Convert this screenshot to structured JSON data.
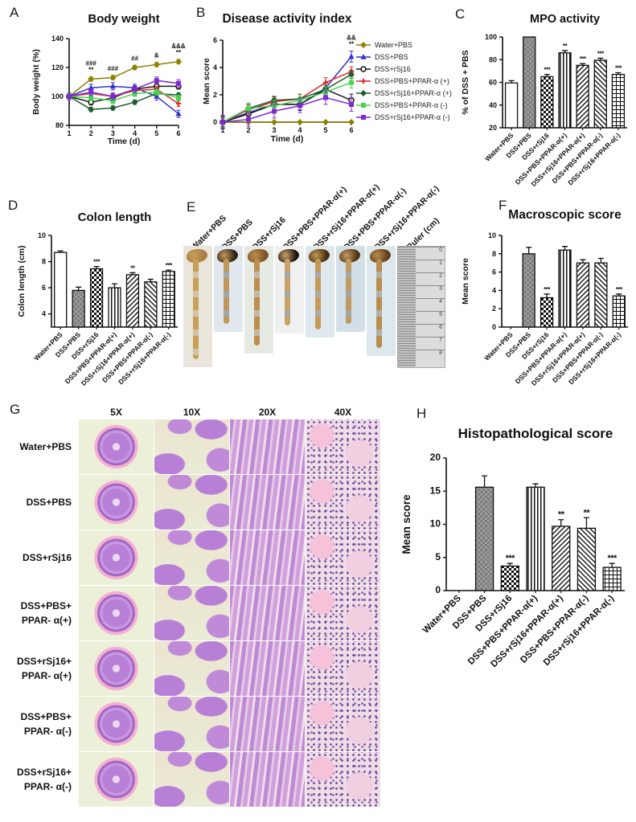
{
  "letters": {
    "A": "A",
    "B": "B",
    "C": "C",
    "D": "D",
    "E": "E",
    "F": "F",
    "G": "G",
    "H": "H"
  },
  "groups": [
    "Water+PBS",
    "DSS+PBS",
    "DSS+rSj16",
    "DSS+PBS+PPAR-α(+)",
    "DSS+rSj16+PPAR-α(+)",
    "DSS+PBS+PPAR-α(-)",
    "DSS+rSj16+PPAR-α(-)"
  ],
  "legend": {
    "entries": [
      {
        "label": "Water+PBS",
        "color": "#8f8000",
        "marker": "diamond"
      },
      {
        "label": "DSS+PBS",
        "color": "#3333cc",
        "marker": "triangle"
      },
      {
        "label": "DSS+rSj16",
        "color": "#1a1a1a",
        "marker": "ocircle"
      },
      {
        "label": "DSS+PBS+PPAR-α (+)",
        "color": "#e02b2b",
        "marker": "plus"
      },
      {
        "label": "DSS+rSj16+PPAR-α (+)",
        "color": "#1d5c2f",
        "marker": "diamond"
      },
      {
        "label": "DSS+PBS+PPAR-α (-)",
        "color": "#46d34f",
        "marker": "square"
      },
      {
        "label": "DSS+rSj16+PPAR-α (-)",
        "color": "#7d2bcf",
        "marker": "square"
      }
    ]
  },
  "chart_data": [
    {
      "id": "A",
      "type": "line",
      "title": "Body weight",
      "xlabel": "Time (d)",
      "ylabel": "Body weight (%)",
      "x": [
        1,
        2,
        3,
        4,
        5,
        6
      ],
      "ylim": [
        80,
        140
      ],
      "yticks": [
        80,
        100,
        120,
        140
      ],
      "legend_position": "right-of-B",
      "series": [
        {
          "name": "Water+PBS",
          "color": "#8f8000",
          "marker": "diamond",
          "err": 1.5,
          "values": [
            100,
            112,
            113,
            120,
            122,
            124
          ]
        },
        {
          "name": "DSS+PBS",
          "color": "#3333cc",
          "marker": "triangle",
          "err": 2.5,
          "values": [
            100,
            106,
            107,
            106,
            100,
            88
          ]
        },
        {
          "name": "DSS+rSj16",
          "color": "#1a1a1a",
          "marker": "ocircle",
          "err": 2,
          "values": [
            100,
            96,
            99,
            105,
            107,
            107
          ]
        },
        {
          "name": "DSS+PBS+PPAR-α (+)",
          "color": "#e02b2b",
          "marker": "plus",
          "err": 2,
          "values": [
            100,
            102,
            100,
            104,
            105,
            95
          ]
        },
        {
          "name": "DSS+rSj16+PPAR-α (+)",
          "color": "#1d5c2f",
          "marker": "diamond",
          "err": 1.5,
          "values": [
            100,
            91,
            92,
            96,
            102,
            101
          ]
        },
        {
          "name": "DSS+PBS+PPAR-α (-)",
          "color": "#46d34f",
          "marker": "square",
          "err": 2,
          "values": [
            100,
            99,
            97,
            102,
            103,
            99
          ]
        },
        {
          "name": "DSS+rSj16+PPAR-α (-)",
          "color": "#7d2bcf",
          "marker": "square",
          "err": 2.5,
          "values": [
            100,
            103,
            100,
            105,
            111,
            109
          ]
        }
      ],
      "annotations": [
        {
          "x": 2,
          "lines": [
            "###",
            "**"
          ]
        },
        {
          "x": 3,
          "lines": [
            "###"
          ]
        },
        {
          "x": 4,
          "lines": [
            "##"
          ]
        },
        {
          "x": 5,
          "lines": [
            "&"
          ]
        },
        {
          "x": 6,
          "lines": [
            "&&&",
            "**"
          ]
        }
      ]
    },
    {
      "id": "B",
      "type": "line",
      "title": "Disease activity index",
      "xlabel": "Time (d)",
      "ylabel": "Mean score",
      "x": [
        1,
        2,
        3,
        4,
        5,
        6
      ],
      "ylim": [
        0,
        6
      ],
      "yticks": [
        0,
        2,
        4,
        6
      ],
      "series": [
        {
          "name": "Water+PBS",
          "color": "#8f8000",
          "marker": "diamond",
          "err": 0,
          "values": [
            0,
            0,
            0,
            0,
            0,
            0
          ]
        },
        {
          "name": "DSS+PBS",
          "color": "#3333cc",
          "marker": "triangle",
          "err": 0.4,
          "values": [
            0,
            0.7,
            1.3,
            1.3,
            2.5,
            4.8
          ]
        },
        {
          "name": "DSS+rSj16",
          "color": "#1a1a1a",
          "marker": "ocircle",
          "err": 0.45,
          "values": [
            0,
            0.6,
            1.3,
            1.3,
            2.4,
            1.6
          ]
        },
        {
          "name": "DSS+PBS+PPAR-α (+)",
          "color": "#e02b2b",
          "marker": "plus",
          "err": 0.35,
          "values": [
            0,
            0.9,
            1.5,
            1.7,
            2.9,
            3.7
          ]
        },
        {
          "name": "DSS+rSj16+PPAR-α (+)",
          "color": "#1d5c2f",
          "marker": "diamond",
          "err": 0.3,
          "values": [
            0,
            1.0,
            1.6,
            1.7,
            2.4,
            3.5
          ]
        },
        {
          "name": "DSS+PBS+PPAR-α (-)",
          "color": "#46d34f",
          "marker": "square",
          "err": 0.4,
          "values": [
            0,
            1.0,
            1.2,
            1.6,
            2.2,
            2.9
          ]
        },
        {
          "name": "DSS+rSj16+PPAR-α (-)",
          "color": "#7d2bcf",
          "marker": "square",
          "err": 0.5,
          "values": [
            0,
            0.2,
            0.8,
            1.2,
            1.8,
            1.3
          ]
        }
      ],
      "annotations": [
        {
          "x": 6,
          "lines": [
            "&&",
            "**"
          ]
        }
      ]
    },
    {
      "id": "C",
      "type": "bar",
      "title": "MPO activity",
      "ylabel": "% of DSS + PBS",
      "categories": [
        "Water+PBS",
        "DSS+PBS",
        "DSS+rSj16",
        "DSS+PBS+PPAR-α(+)",
        "DSS+rSj16+PPAR-α(+)",
        "DSS+PBS+PPAR-α(-)",
        "DSS+rSj16+PPAR-α(-)"
      ],
      "values": [
        59.5,
        100,
        65,
        86,
        75,
        79.5,
        67
      ],
      "errors": [
        2,
        0,
        2,
        2,
        1.5,
        1.8,
        1.5
      ],
      "sig": [
        "",
        "",
        "***",
        "**",
        "***",
        "***",
        "***"
      ],
      "ylim": [
        20,
        100
      ],
      "yticks": [
        20,
        40,
        60,
        80,
        100
      ],
      "patterns": [
        "solid",
        "gray",
        "checker",
        "vlines",
        "diag1",
        "diag2",
        "grid"
      ]
    },
    {
      "id": "D",
      "type": "bar",
      "title": "Colon length",
      "ylabel": "Colon length (cm)",
      "categories": [
        "Water+PBS",
        "DSS+PBS",
        "DSS+rSj16",
        "DSS+PBS+PPAR-α(+)",
        "DSS+rSj16+PPAR-α(+)",
        "DSS+PBS+PPAR-α(-)",
        "DSS+rSj16+PPAR-α(-)"
      ],
      "values": [
        8.7,
        5.8,
        7.45,
        6.0,
        7.0,
        6.45,
        7.25
      ],
      "errors": [
        0.12,
        0.25,
        0.18,
        0.3,
        0.15,
        0.2,
        0.1
      ],
      "sig": [
        "",
        "",
        "***",
        "",
        "**",
        "",
        "***"
      ],
      "ylim": [
        3,
        10
      ],
      "yticks": [
        4,
        6,
        8,
        10
      ],
      "patterns": [
        "solid",
        "gray",
        "checker",
        "vlines",
        "diag1",
        "diag2",
        "grid"
      ]
    },
    {
      "id": "F",
      "type": "bar",
      "title": "Macroscopic score",
      "ylabel": "Mean score",
      "categories": [
        "Water+PBS",
        "DSS+PBS",
        "DSS+rSj16",
        "DSS+PBS+PPAR-α(+)",
        "DSS+rSj16+PPAR-α(+)",
        "DSS+PBS+PPAR-α(-)",
        "DSS+rSj16+PPAR-α(-)"
      ],
      "values": [
        0,
        8.0,
        3.2,
        8.4,
        7.0,
        7.0,
        3.4
      ],
      "errors": [
        0,
        0.7,
        0.4,
        0.4,
        0.35,
        0.5,
        0.2
      ],
      "sig": [
        "",
        "",
        "***",
        "",
        "",
        "",
        "***"
      ],
      "ylim": [
        0,
        10
      ],
      "yticks": [
        0,
        2,
        4,
        6,
        8,
        10
      ],
      "patterns": [
        "solid",
        "gray",
        "checker",
        "vlines",
        "diag1",
        "diag2",
        "grid"
      ]
    },
    {
      "id": "H",
      "type": "bar",
      "title": "Histopathological score",
      "ylabel": "Mean score",
      "categories": [
        "Water+PBS",
        "DSS+PBS",
        "DSS+rSj16",
        "DSS+PBS+PPAR-α(+)",
        "DSS+rSj16+PPAR-α(+)",
        "DSS+PBS+PPAR-α(-)",
        "DSS+rSj16+PPAR-α(-)"
      ],
      "values": [
        0,
        15.6,
        3.7,
        15.6,
        9.7,
        9.4,
        3.5
      ],
      "errors": [
        0,
        1.7,
        0.4,
        0.5,
        1.0,
        1.6,
        0.6
      ],
      "sig": [
        "",
        "",
        "***",
        "",
        "**",
        "**",
        "***"
      ],
      "ylim": [
        0,
        20
      ],
      "yticks": [
        0,
        5,
        10,
        15,
        20
      ],
      "patterns": [
        "solid",
        "gray",
        "checker",
        "vlines",
        "diag1",
        "diag2",
        "grid"
      ]
    }
  ],
  "panel_e": {
    "labels": [
      "Water+PBS",
      "DSS+PBS",
      "DSS+rSj16",
      "DSS+PBS+PPAR-α(+)",
      "DSS+rSj16+PPAR-α(+)",
      "DSS+PBS+PPAR-α(-)",
      "DSS+rSj16+PPAR-α(-)",
      "Ruler (cm)"
    ],
    "ruler_numbers": [
      "0",
      "1",
      "2",
      "3",
      "4",
      "5",
      "6",
      "7",
      "8"
    ]
  },
  "panel_g": {
    "columns": [
      "5X",
      "10X",
      "20X",
      "40X"
    ],
    "rows": [
      {
        "lines": [
          "Water+PBS"
        ]
      },
      {
        "lines": [
          "DSS+PBS"
        ]
      },
      {
        "lines": [
          "DSS+rSj16"
        ]
      },
      {
        "lines": [
          "DSS+PBS+",
          "PPAR- α(+)"
        ]
      },
      {
        "lines": [
          "DSS+rSj16+",
          "PPAR- α(+)"
        ]
      },
      {
        "lines": [
          "DSS+PBS+",
          "PPAR- α(-)"
        ]
      },
      {
        "lines": [
          "DSS+rSj16+",
          "PPAR- α(-)"
        ]
      }
    ]
  }
}
